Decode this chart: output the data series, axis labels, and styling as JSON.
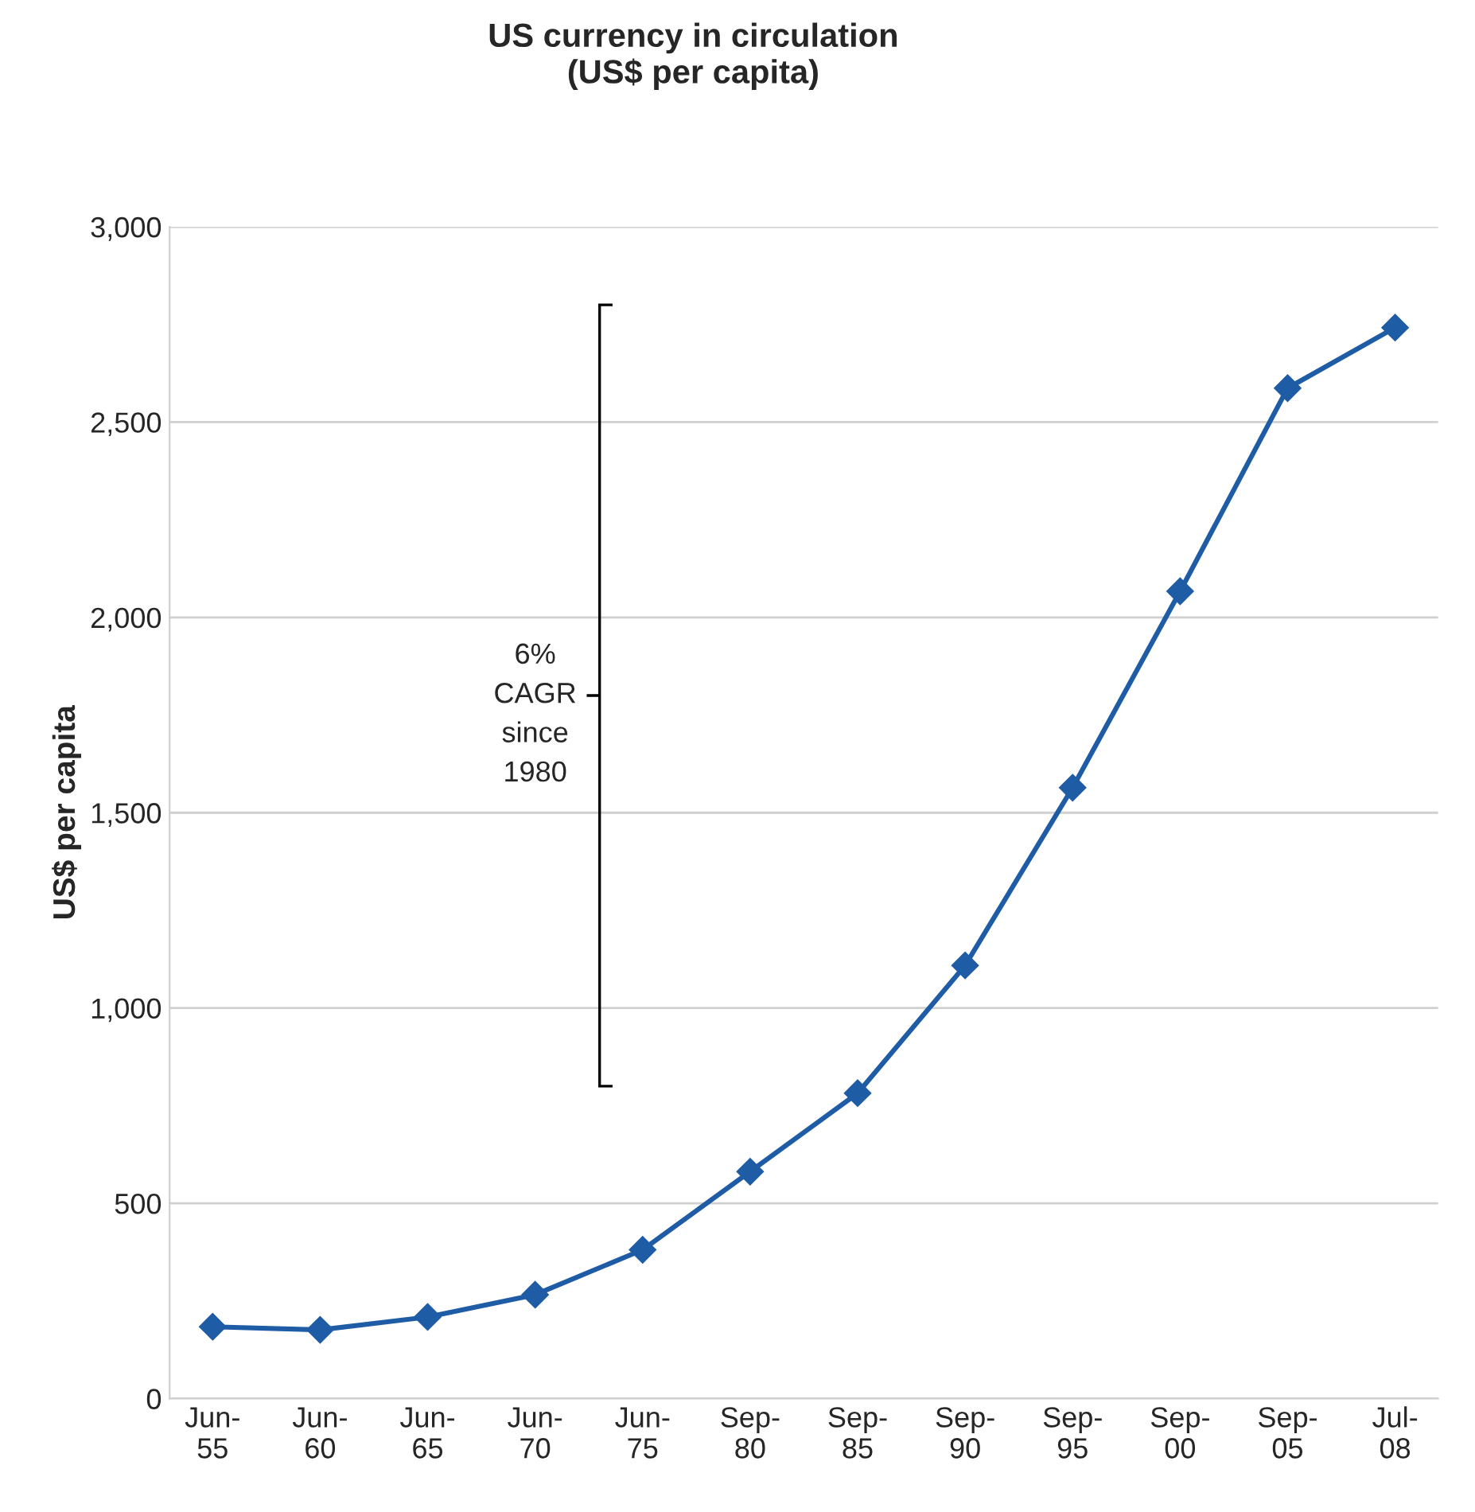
{
  "chart_data": {
    "type": "line",
    "title": "US currency in circulation\n(US$ per capita)",
    "ylabel": "US$ per capita",
    "categories": [
      "Jun-55",
      "Jun-60",
      "Jun-65",
      "Jun-70",
      "Jun-75",
      "Sep-80",
      "Sep-85",
      "Sep-90",
      "Sep-95",
      "Sep-00",
      "Sep-05",
      "Jul-08"
    ],
    "series": [
      {
        "color": "#1f5ca6",
        "values": [
          184,
          176,
          209,
          266,
          381,
          581,
          782,
          1109,
          1564,
          2067,
          2587,
          2742
        ]
      }
    ],
    "ylim": [
      0,
      3000
    ],
    "yticks": [
      0,
      500,
      {
        "value": 1000,
        "label": "1,000"
      },
      {
        "value": 1500,
        "label": "1,500"
      },
      {
        "value": 2000,
        "label": "2,000"
      },
      {
        "value": 2500,
        "label": "2,500"
      },
      {
        "value": 3000,
        "label": "3,000"
      }
    ],
    "annotations": [
      "6%\nCAGR\nsince\n1980"
    ],
    "grid": "y",
    "marker": "diamond",
    "line_style": "solid",
    "legend": false
  }
}
